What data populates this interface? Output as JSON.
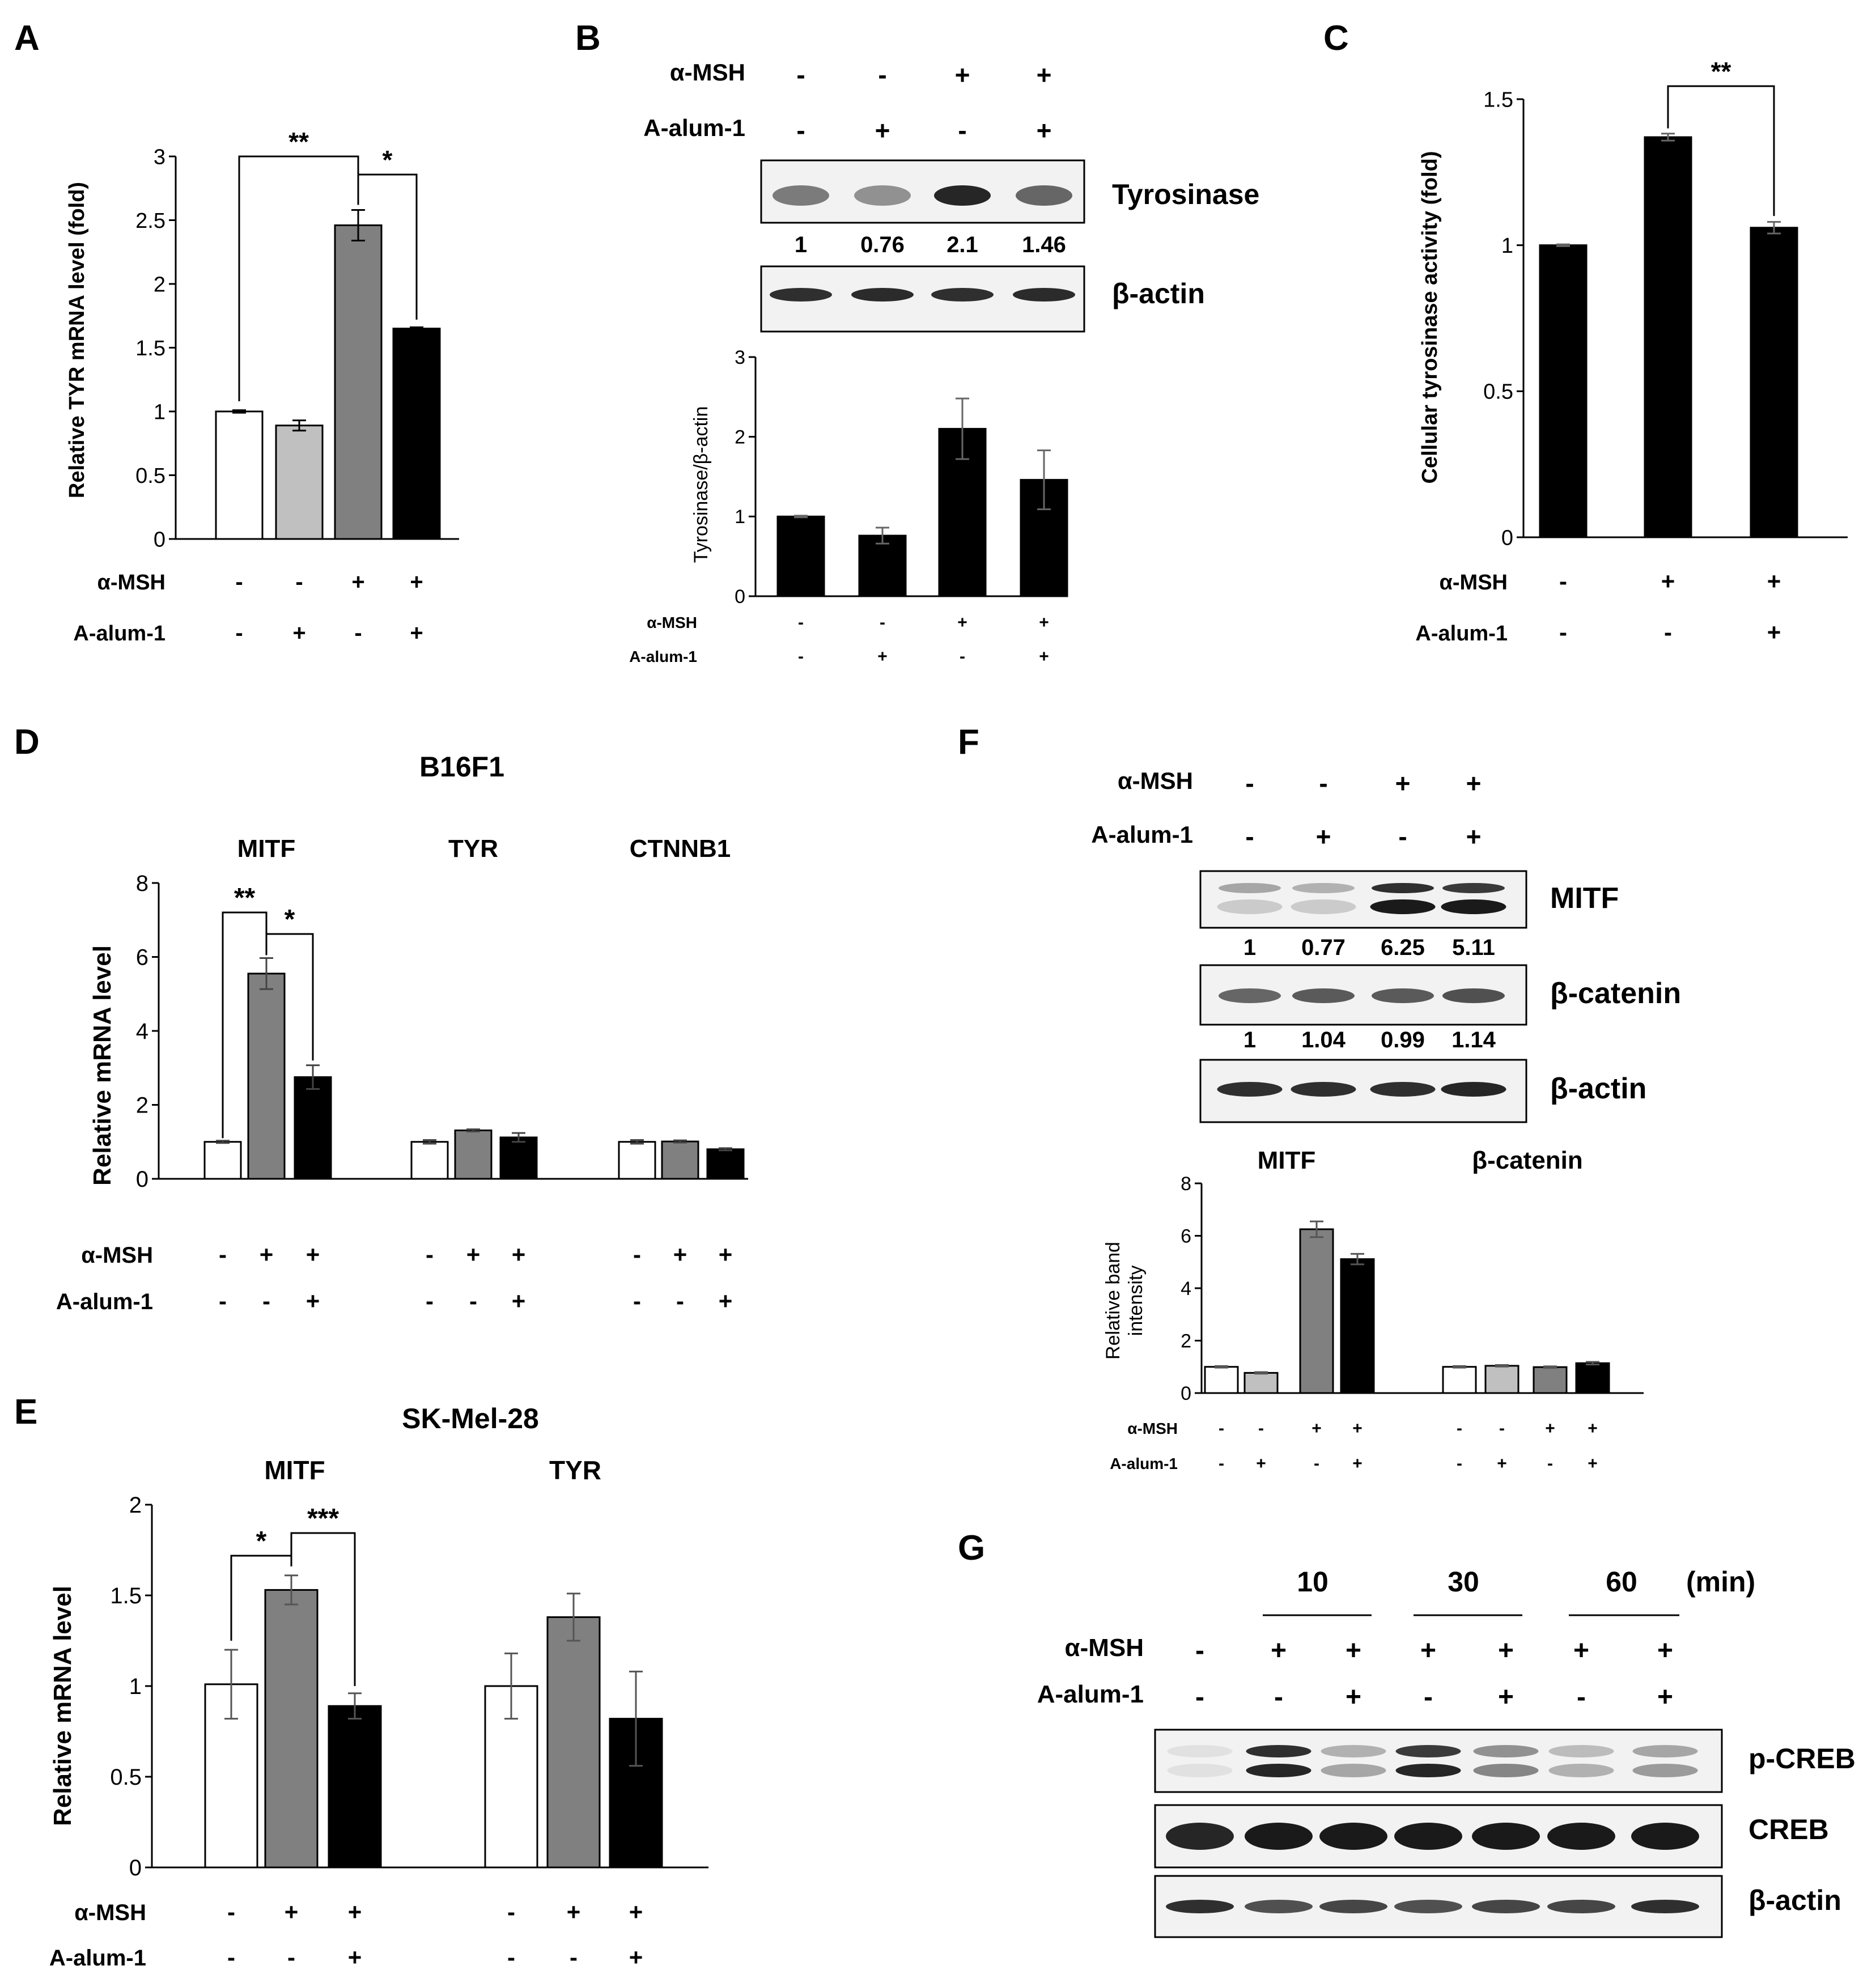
{
  "colors": {
    "white_bar": "#ffffff",
    "light_gray_bar": "#c0c0c0",
    "gray_bar": "#808080",
    "black_bar": "#000000",
    "blot_background": "#f2f2f2",
    "band": "#1a1a1a"
  },
  "treatment_labels": {
    "msh": "α-MSH",
    "alum": "A-alum-1"
  },
  "panels": {
    "A": {
      "letter": "A",
      "ylabel": "Relative TYR mRNA level (fold)",
      "ticks": [
        "0",
        "0.5",
        "1",
        "1.5",
        "2",
        "2.5",
        "3"
      ],
      "msh": [
        "-",
        "-",
        "+",
        "+"
      ],
      "alum": [
        "-",
        "+",
        "-",
        "+"
      ],
      "sig": [
        "**",
        "*"
      ]
    },
    "B": {
      "letter": "B",
      "msh": [
        "-",
        "-",
        "+",
        "+"
      ],
      "alum": [
        "-",
        "+",
        "-",
        "+"
      ],
      "blot_labels": [
        "Tyrosinase",
        "β-actin"
      ],
      "quant": [
        "1",
        "0.76",
        "2.1",
        "1.46"
      ],
      "ylabel": "Tyrosinase/β-actin",
      "ticks": [
        "0",
        "1",
        "2",
        "3"
      ]
    },
    "C": {
      "letter": "C",
      "ylabel": "Cellular tyrosinase activity (fold)",
      "ticks": [
        "0",
        "0.5",
        "1",
        "1.5"
      ],
      "msh": [
        "-",
        "+",
        "+"
      ],
      "alum": [
        "-",
        "-",
        "+"
      ],
      "sig": [
        "**"
      ]
    },
    "D": {
      "letter": "D",
      "title": "B16F1",
      "groups": [
        "MITF",
        "TYR",
        "CTNNB1"
      ],
      "ylabel": "Relative mRNA level",
      "ticks": [
        "0",
        "2",
        "4",
        "6",
        "8"
      ],
      "msh": [
        "-",
        "+",
        "+",
        "-",
        "+",
        "+",
        "-",
        "+",
        "+"
      ],
      "alum": [
        "-",
        "-",
        "+",
        "-",
        "-",
        "+",
        "-",
        "-",
        "+"
      ],
      "sig": [
        "**",
        "*"
      ]
    },
    "E": {
      "letter": "E",
      "title": "SK-Mel-28",
      "groups": [
        "MITF",
        "TYR"
      ],
      "ylabel": "Relative mRNA level",
      "ticks": [
        "0",
        "0.5",
        "1",
        "1.5",
        "2"
      ],
      "msh": [
        "-",
        "+",
        "+",
        "-",
        "+",
        "+"
      ],
      "alum": [
        "-",
        "-",
        "+",
        "-",
        "-",
        "+"
      ],
      "sig": [
        "*",
        "***"
      ]
    },
    "F": {
      "letter": "F",
      "msh": [
        "-",
        "-",
        "+",
        "+"
      ],
      "alum": [
        "-",
        "+",
        "-",
        "+"
      ],
      "blot_labels": [
        "MITF",
        "β-catenin",
        "β-actin"
      ],
      "quant_mitf": [
        "1",
        "0.77",
        "6.25",
        "5.11"
      ],
      "quant_catenin": [
        "1",
        "1.04",
        "0.99",
        "1.14"
      ],
      "groups": [
        "MITF",
        "β-catenin"
      ],
      "ylabel_line1": "Relative band",
      "ylabel_line2": "intensity",
      "ticks": [
        "0",
        "2",
        "4",
        "6",
        "8"
      ],
      "chart_msh": [
        "-",
        "-",
        "+",
        "+",
        "-",
        "-",
        "+",
        "+"
      ],
      "chart_alum": [
        "-",
        "+",
        "-",
        "+",
        "-",
        "+",
        "-",
        "+"
      ]
    },
    "G": {
      "letter": "G",
      "times": [
        "10",
        "30",
        "60"
      ],
      "unit": "(min)",
      "msh": [
        "-",
        "+",
        "+",
        "+",
        "+",
        "+",
        "+"
      ],
      "alum": [
        "-",
        "-",
        "+",
        "-",
        "+",
        "-",
        "+"
      ],
      "blot_labels": [
        "p-CREB",
        "CREB",
        "β-actin"
      ]
    }
  },
  "chart_data": [
    {
      "panel": "A",
      "type": "bar",
      "ylabel": "Relative TYR mRNA level (fold)",
      "ylim": [
        0,
        3
      ],
      "categories": [
        "-/-",
        "-/+",
        "+/-",
        "+/+"
      ],
      "values": [
        1.0,
        0.89,
        2.46,
        1.65
      ],
      "errors": [
        0.01,
        0.04,
        0.12,
        0.01
      ],
      "colors": [
        "#ffffff",
        "#c0c0c0",
        "#808080",
        "#000000"
      ]
    },
    {
      "panel": "B",
      "type": "bar",
      "ylabel": "Tyrosinase/β-actin",
      "ylim": [
        0,
        3
      ],
      "categories": [
        "-/-",
        "-/+",
        "+/-",
        "+/+"
      ],
      "values": [
        1.0,
        0.76,
        2.1,
        1.46
      ],
      "errors": [
        0.01,
        0.1,
        0.38,
        0.37
      ],
      "colors": [
        "#000000",
        "#000000",
        "#000000",
        "#000000"
      ]
    },
    {
      "panel": "C",
      "type": "bar",
      "ylabel": "Cellular tyrosinase activity (fold)",
      "ylim": [
        0,
        1.5
      ],
      "categories": [
        "-/-",
        "+/-",
        "+/+"
      ],
      "values": [
        1.0,
        1.37,
        1.06
      ],
      "errors": [
        0.003,
        0.012,
        0.02
      ],
      "colors": [
        "#000000",
        "#000000",
        "#000000"
      ]
    },
    {
      "panel": "D",
      "type": "bar",
      "title": "B16F1",
      "ylabel": "Relative mRNA level",
      "ylim": [
        0,
        8
      ],
      "categories": [
        "MITF",
        "TYR",
        "CTNNB1"
      ],
      "series": [
        {
          "values": [
            1.0,
            1.0,
            1.0
          ],
          "errors": [
            0.03,
            0.05,
            0.05
          ],
          "color": "#ffffff"
        },
        {
          "values": [
            5.55,
            1.31,
            1.01
          ],
          "errors": [
            0.42,
            0.03,
            0.03
          ],
          "color": "#808080"
        },
        {
          "values": [
            2.75,
            1.12,
            0.8
          ],
          "errors": [
            0.32,
            0.12,
            0.03
          ],
          "color": "#000000"
        }
      ]
    },
    {
      "panel": "E",
      "type": "bar",
      "title": "SK-Mel-28",
      "ylabel": "Relative mRNA level",
      "ylim": [
        0,
        2
      ],
      "categories": [
        "MITF",
        "TYR"
      ],
      "series": [
        {
          "values": [
            1.01,
            1.0
          ],
          "errors": [
            0.19,
            0.18
          ],
          "color": "#ffffff"
        },
        {
          "values": [
            1.53,
            1.38
          ],
          "errors": [
            0.08,
            0.13
          ],
          "color": "#808080"
        },
        {
          "values": [
            0.89,
            0.82
          ],
          "errors": [
            0.07,
            0.26
          ],
          "color": "#000000"
        }
      ]
    },
    {
      "panel": "F",
      "type": "bar",
      "ylabel": "Relative band intensity",
      "ylim": [
        0,
        8
      ],
      "categories": [
        "MITF",
        "β-catenin"
      ],
      "series": [
        {
          "values": [
            1.0,
            1.0
          ],
          "errors": [
            0.03,
            0.03
          ],
          "color": "#ffffff"
        },
        {
          "values": [
            0.77,
            1.04
          ],
          "errors": [
            0.03,
            0.03
          ],
          "color": "#c0c0c0"
        },
        {
          "values": [
            6.25,
            0.99
          ],
          "errors": [
            0.3,
            0.03
          ],
          "color": "#808080"
        },
        {
          "values": [
            5.11,
            1.14
          ],
          "errors": [
            0.2,
            0.05
          ],
          "color": "#000000"
        }
      ]
    }
  ]
}
